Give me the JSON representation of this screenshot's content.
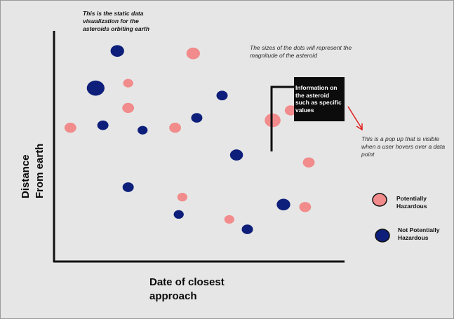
{
  "notes": {
    "title": "This is the static data visualization for the asteroids orbiting earth",
    "dot_size": "The sizes of the dots will represent the magnitude of the asteroid",
    "popup_explanation": "This is a pop up that is visible when a user hovers over a data point"
  },
  "popup": {
    "text": "Information on the asteroid such as specific values"
  },
  "axes": {
    "ylabel": "Distance\nFrom earth",
    "xlabel": "Date of closest approach"
  },
  "legend": {
    "hazardous": "Potentially Hazardous",
    "not_hazardous": "Not Potentially Hazardous"
  },
  "colors": {
    "hazardous": "#f28b8b",
    "not_hazardous": "#0d1f7a",
    "axis": "#111111",
    "arrow": "#e02020"
  },
  "chart_data": {
    "type": "scatter",
    "xlabel": "Date of closest approach",
    "ylabel": "Distance From earth",
    "grid": false,
    "legend_position": "right",
    "series": [
      {
        "name": "Potentially Hazardous",
        "points": [
          {
            "x": 0.02,
            "y": 0.54,
            "size": 0.5
          },
          {
            "x": 0.36,
            "y": 0.84,
            "size": 0.65
          },
          {
            "x": 0.18,
            "y": 0.72,
            "size": 0.35
          },
          {
            "x": 0.18,
            "y": 0.62,
            "size": 0.5
          },
          {
            "x": 0.31,
            "y": 0.54,
            "size": 0.5
          },
          {
            "x": 0.33,
            "y": 0.26,
            "size": 0.35
          },
          {
            "x": 0.46,
            "y": 0.17,
            "size": 0.35
          },
          {
            "x": 0.58,
            "y": 0.57,
            "size": 0.85
          },
          {
            "x": 0.63,
            "y": 0.61,
            "size": 0.5
          },
          {
            "x": 0.68,
            "y": 0.4,
            "size": 0.5
          },
          {
            "x": 0.67,
            "y": 0.22,
            "size": 0.5
          }
        ]
      },
      {
        "name": "Not Potentially Hazardous",
        "points": [
          {
            "x": 0.15,
            "y": 0.85,
            "size": 0.65
          },
          {
            "x": 0.09,
            "y": 0.7,
            "size": 1.0
          },
          {
            "x": 0.11,
            "y": 0.55,
            "size": 0.45
          },
          {
            "x": 0.22,
            "y": 0.53,
            "size": 0.35
          },
          {
            "x": 0.37,
            "y": 0.58,
            "size": 0.45
          },
          {
            "x": 0.44,
            "y": 0.67,
            "size": 0.45
          },
          {
            "x": 0.48,
            "y": 0.43,
            "size": 0.6
          },
          {
            "x": 0.18,
            "y": 0.3,
            "size": 0.45
          },
          {
            "x": 0.32,
            "y": 0.19,
            "size": 0.35
          },
          {
            "x": 0.51,
            "y": 0.13,
            "size": 0.45
          },
          {
            "x": 0.61,
            "y": 0.23,
            "size": 0.65
          }
        ]
      }
    ]
  }
}
